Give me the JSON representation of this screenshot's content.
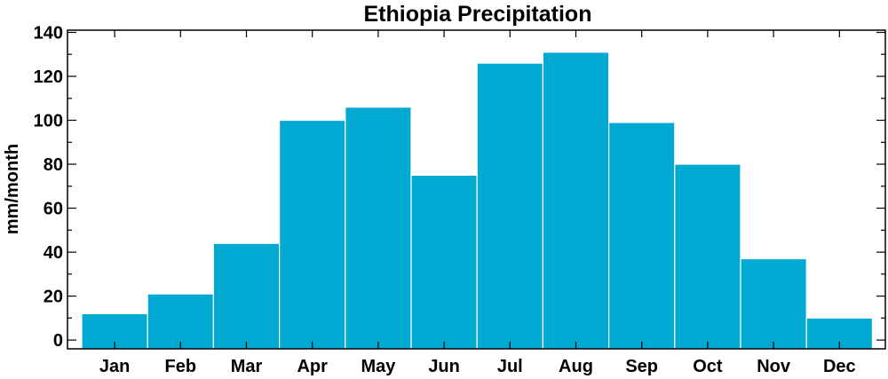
{
  "chart_data": {
    "type": "bar",
    "title": "Ethiopia Precipitation",
    "xlabel": "",
    "ylabel": "mm/month",
    "categories": [
      "Jan",
      "Feb",
      "Mar",
      "Apr",
      "May",
      "Jun",
      "Jul",
      "Aug",
      "Sep",
      "Oct",
      "Nov",
      "Dec"
    ],
    "values": [
      12,
      21,
      44,
      100,
      106,
      75,
      126,
      131,
      99,
      80,
      37,
      10
    ],
    "ylim": [
      -4,
      141
    ],
    "yticks": [
      0,
      20,
      40,
      60,
      80,
      100,
      120,
      140
    ],
    "bar_color": "#02a9d3",
    "grid": false,
    "legend": "none"
  }
}
